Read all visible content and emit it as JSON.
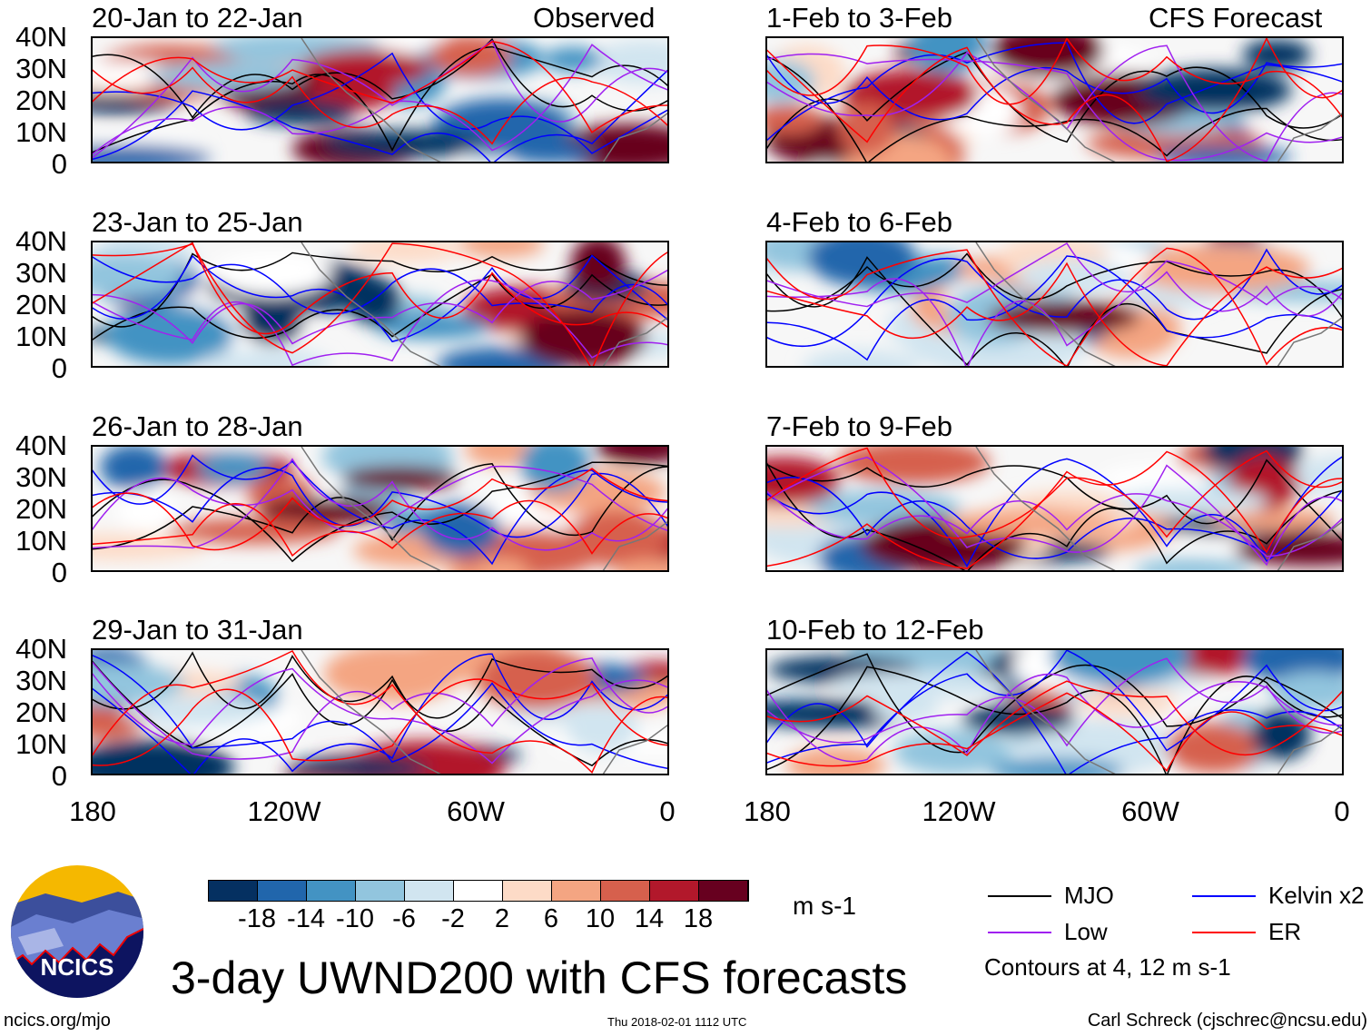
{
  "figure_title": "3-day UWND200 with CFS forecasts",
  "column_labels": {
    "left": "Observed",
    "right": "CFS Forecast"
  },
  "panels_left": [
    "20-Jan to 22-Jan",
    "23-Jan to 25-Jan",
    "26-Jan to 28-Jan",
    "29-Jan to 31-Jan"
  ],
  "panels_right": [
    "1-Feb to 3-Feb",
    "4-Feb to 6-Feb",
    "7-Feb to 9-Feb",
    "10-Feb to 12-Feb"
  ],
  "lat_ticks": [
    "40N",
    "30N",
    "20N",
    "10N",
    "0"
  ],
  "lon_ticks": [
    "180",
    "120W",
    "60W",
    "0"
  ],
  "colorbar": {
    "colors": [
      "#053061",
      "#2166ac",
      "#4393c3",
      "#92c5de",
      "#d1e5f0",
      "#ffffff",
      "#fddbc7",
      "#f4a582",
      "#d6604d",
      "#b2182b",
      "#67001f"
    ],
    "labels": [
      "-18",
      "-14",
      "-10",
      "-6",
      "-2",
      "2",
      "6",
      "10",
      "14",
      "18"
    ],
    "units": "m s-1"
  },
  "legend": [
    {
      "label": "MJO",
      "color": "#000000"
    },
    {
      "label": "Kelvin x2",
      "color": "#0000ff"
    },
    {
      "label": "Low",
      "color": "#a020f0"
    },
    {
      "label": "ER",
      "color": "#ff0000"
    }
  ],
  "contour_note": "Contours at 4, 12 m s-1",
  "logo_text": "NCICS",
  "footer": {
    "url": "ncics.org/mjo",
    "timestamp": "Thu 2018-02-01 1112 UTC",
    "author": "Carl Schreck (cjschrec@ncsu.edu)"
  }
}
